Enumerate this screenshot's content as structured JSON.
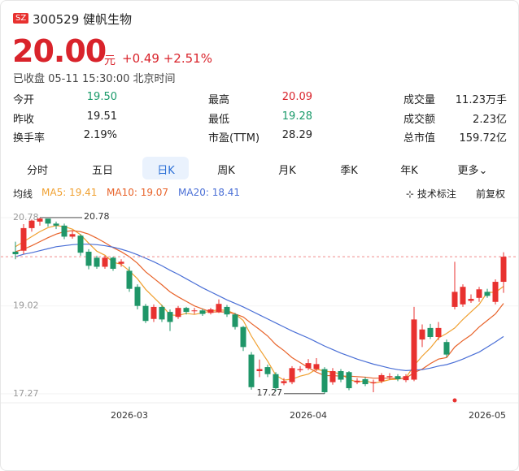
{
  "header": {
    "exchange": "SZ",
    "code": "300529 健帆生物",
    "price": "20.00",
    "unit": "元",
    "change": "+0.49 +2.51%",
    "status": "已收盘 05-11 15:30:00 北京时间"
  },
  "stats": [
    [
      {
        "label": "今开",
        "value": "19.50",
        "color": "#1a9a6a"
      },
      {
        "label": "最高",
        "value": "20.09",
        "color": "#d9232b"
      },
      {
        "label": "成交量",
        "value": "11.23万手"
      }
    ],
    [
      {
        "label": "昨收",
        "value": "19.51"
      },
      {
        "label": "最低",
        "value": "19.28",
        "color": "#1a9a6a"
      },
      {
        "label": "成交额",
        "value": "2.23亿"
      }
    ],
    [
      {
        "label": "换手率",
        "value": "2.19%"
      },
      {
        "label": "市盈(TTM)",
        "value": "28.29"
      },
      {
        "label": "总市值",
        "value": "159.72亿"
      }
    ]
  ],
  "tabs": [
    "分时",
    "五日",
    "日K",
    "周K",
    "月K",
    "季K",
    "年K",
    "更多"
  ],
  "selected_tab": 2,
  "toolbar": {
    "ma": "均线",
    "marking": "技术标注",
    "adjust": "前复权"
  },
  "chart_data": {
    "type": "candlestick",
    "categories": [
      null,
      null,
      null,
      null,
      null,
      null,
      null,
      null,
      null,
      null,
      null,
      null,
      null,
      null,
      "2026-03",
      null,
      null,
      null,
      null,
      null,
      null,
      null,
      null,
      null,
      null,
      null,
      null,
      null,
      null,
      null,
      null,
      null,
      null,
      null,
      null,
      null,
      "2026-04",
      null,
      null,
      null,
      null,
      null,
      null,
      null,
      null,
      null,
      null,
      null,
      null,
      null,
      null,
      null,
      null,
      null,
      null,
      null,
      null,
      null,
      "2026-05",
      null,
      null
    ],
    "open": [
      20.1,
      20.12,
      20.57,
      20.7,
      20.76,
      20.66,
      20.62,
      20.4,
      20.42,
      20.1,
      19.98,
      19.8,
      19.98,
      19.86,
      19.72,
      19.4,
      19.02,
      18.76,
      19.0,
      18.9,
      18.8,
      18.98,
      18.92,
      18.93,
      18.88,
      18.9,
      19.0,
      18.85,
      18.6,
      18.05,
      17.72,
      17.8,
      17.66,
      17.48,
      17.5,
      17.74,
      17.78,
      17.76,
      17.76,
      17.5,
      17.72,
      17.7,
      17.5,
      17.56,
      17.48,
      17.52,
      17.6,
      17.62,
      17.54,
      17.55,
      18.35,
      18.58,
      18.4,
      18.3,
      19.0,
      19.05,
      19.12,
      19.18,
      19.3,
      19.1,
      19.5
    ],
    "close": [
      20.05,
      20.57,
      20.72,
      20.76,
      20.66,
      20.62,
      20.4,
      20.45,
      20.08,
      19.82,
      19.8,
      19.98,
      19.76,
      19.9,
      19.36,
      19.02,
      18.72,
      19.0,
      18.75,
      18.7,
      18.98,
      18.9,
      18.93,
      18.86,
      18.95,
      19.06,
      18.85,
      18.6,
      18.2,
      17.4,
      17.76,
      17.66,
      17.38,
      17.52,
      17.78,
      17.76,
      17.88,
      17.86,
      17.3,
      17.72,
      17.55,
      17.38,
      17.53,
      17.46,
      17.5,
      17.64,
      17.62,
      17.56,
      17.62,
      18.75,
      18.55,
      18.4,
      18.58,
      18.05,
      19.3,
      19.4,
      19.16,
      19.35,
      19.22,
      19.5,
      20.0
    ],
    "high": [
      20.3,
      20.65,
      20.74,
      20.78,
      20.75,
      20.7,
      20.66,
      20.52,
      20.45,
      20.15,
      20.02,
      20.02,
      20.0,
      19.95,
      19.8,
      19.45,
      19.06,
      19.05,
      19.04,
      18.95,
      19.02,
      19.0,
      18.98,
      18.96,
      18.98,
      19.15,
      19.04,
      18.88,
      18.62,
      18.1,
      17.95,
      17.85,
      17.7,
      17.58,
      17.82,
      17.82,
      17.96,
      17.98,
      17.8,
      17.78,
      17.76,
      17.72,
      17.58,
      17.6,
      17.55,
      17.68,
      17.68,
      17.66,
      17.66,
      19.0,
      18.65,
      18.66,
      18.7,
      18.35,
      19.9,
      19.45,
      19.25,
      19.4,
      19.36,
      19.55,
      20.09
    ],
    "low": [
      19.95,
      20.05,
      20.5,
      20.62,
      20.6,
      20.55,
      20.35,
      20.36,
      20.02,
      19.75,
      19.76,
      19.76,
      19.72,
      19.8,
      19.3,
      18.95,
      18.68,
      18.7,
      18.7,
      18.52,
      18.76,
      18.85,
      18.86,
      18.82,
      18.85,
      18.88,
      18.8,
      18.55,
      18.12,
      17.35,
      17.6,
      17.6,
      17.32,
      17.44,
      17.46,
      17.7,
      17.74,
      17.72,
      17.27,
      17.45,
      17.5,
      17.34,
      17.46,
      17.42,
      17.3,
      17.48,
      17.55,
      17.52,
      17.5,
      17.52,
      18.2,
      18.36,
      18.34,
      18.0,
      18.95,
      19.0,
      19.08,
      19.1,
      19.18,
      19.05,
      19.28
    ],
    "series": [
      {
        "name": "MA5: 19.41",
        "color": "#f0a030",
        "values": [
          20.2,
          20.3,
          20.4,
          20.5,
          20.58,
          20.62,
          20.6,
          20.55,
          20.44,
          20.27,
          20.11,
          20.03,
          19.89,
          19.85,
          19.72,
          19.56,
          19.35,
          19.19,
          19.03,
          18.84,
          18.83,
          18.87,
          18.85,
          18.88,
          18.92,
          18.94,
          18.93,
          18.86,
          18.73,
          18.42,
          18.16,
          17.92,
          17.64,
          17.54,
          17.56,
          17.62,
          17.66,
          17.76,
          17.72,
          17.7,
          17.66,
          17.56,
          17.5,
          17.53,
          17.48,
          17.51,
          17.55,
          17.56,
          17.59,
          17.83,
          18.02,
          18.18,
          18.38,
          18.47,
          18.58,
          18.75,
          18.9,
          19.05,
          19.29,
          19.29,
          19.41
        ]
      },
      {
        "name": "MA10: 19.07",
        "color": "#e8632a",
        "values": [
          20.1,
          20.15,
          20.22,
          20.3,
          20.38,
          20.45,
          20.5,
          20.52,
          20.5,
          20.45,
          20.37,
          20.28,
          20.18,
          20.1,
          20.0,
          19.87,
          19.7,
          19.57,
          19.44,
          19.3,
          19.2,
          19.11,
          19.02,
          18.96,
          18.9,
          18.9,
          18.9,
          18.86,
          18.8,
          18.67,
          18.55,
          18.42,
          18.25,
          18.13,
          17.99,
          17.89,
          17.79,
          17.7,
          17.63,
          17.63,
          17.62,
          17.62,
          17.61,
          17.6,
          17.58,
          17.58,
          17.58,
          17.57,
          17.58,
          17.69,
          17.76,
          17.87,
          17.96,
          17.99,
          18.2,
          18.33,
          18.44,
          18.6,
          18.73,
          18.86,
          19.07
        ]
      },
      {
        "name": "MA20: 18.41",
        "color": "#4a6fd6",
        "values": [
          20.0,
          20.05,
          20.08,
          20.12,
          20.16,
          20.2,
          20.22,
          20.24,
          20.25,
          20.25,
          20.24,
          20.22,
          20.19,
          20.15,
          20.1,
          20.04,
          19.97,
          19.9,
          19.82,
          19.73,
          19.65,
          19.56,
          19.47,
          19.38,
          19.3,
          19.22,
          19.14,
          19.07,
          19.0,
          18.92,
          18.84,
          18.76,
          18.68,
          18.6,
          18.52,
          18.45,
          18.38,
          18.3,
          18.22,
          18.15,
          18.08,
          18.02,
          17.96,
          17.91,
          17.86,
          17.82,
          17.78,
          17.75,
          17.73,
          17.74,
          17.75,
          17.78,
          17.82,
          17.85,
          17.9,
          17.96,
          18.03,
          18.1,
          18.2,
          18.3,
          18.41
        ]
      }
    ],
    "up_color": "#e8312f",
    "down_color": "#1f9668",
    "ylim": [
      17.17,
      20.86
    ],
    "yticks": [
      20.78,
      19.02,
      17.27
    ]
  }
}
